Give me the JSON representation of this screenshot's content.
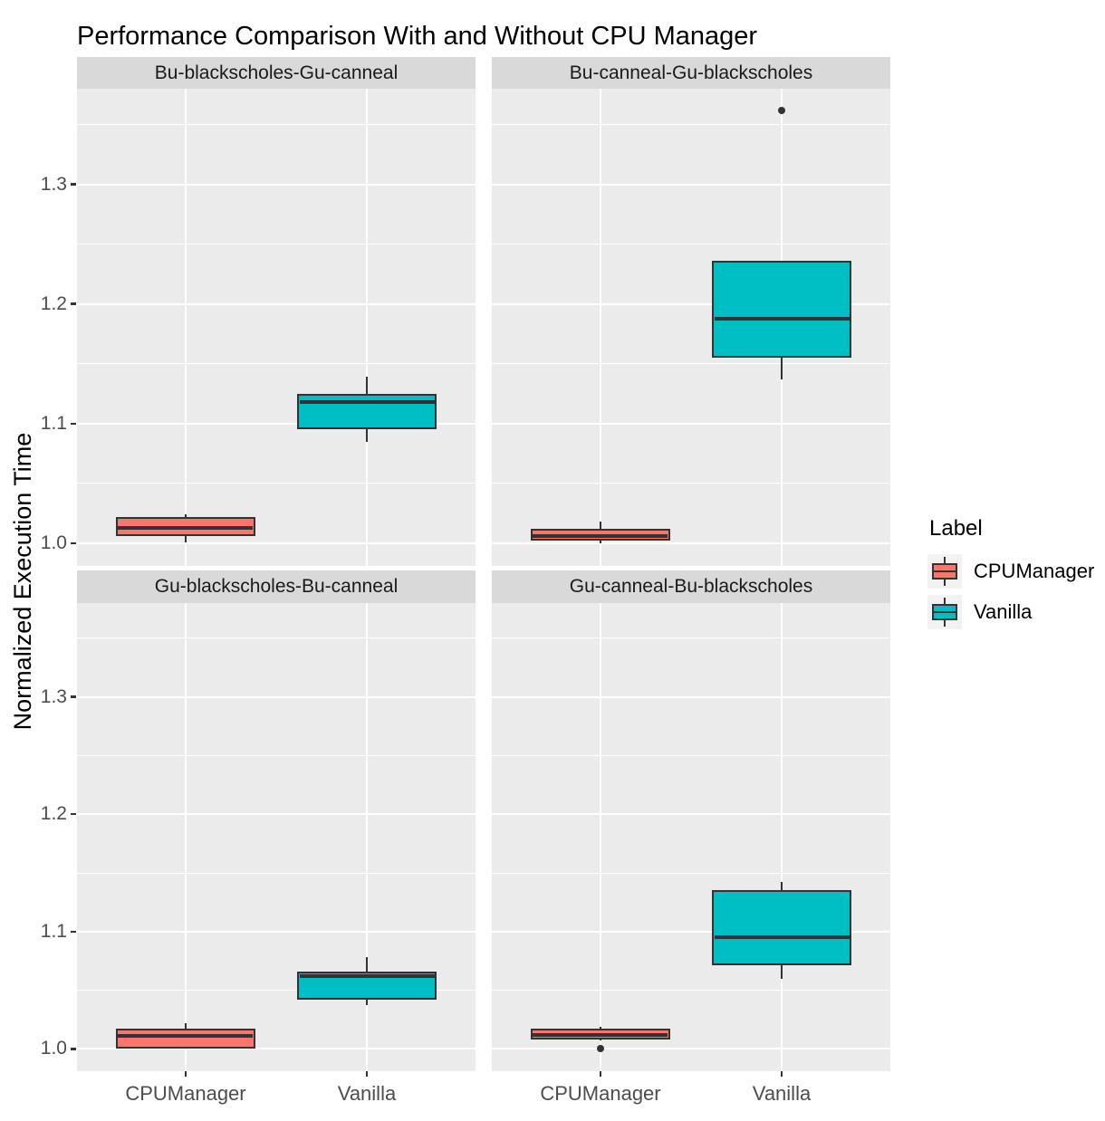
{
  "title": "Performance Comparison With and Without CPU Manager",
  "chart_data": {
    "type": "boxplot",
    "title": "Performance Comparison With and Without CPU Manager",
    "ylabel": "Normalized Execution Time",
    "xlabel": "",
    "categories": [
      "CPUManager",
      "Vanilla"
    ],
    "yticks": [
      1.0,
      1.1,
      1.2,
      1.3
    ],
    "ytick_labels": [
      "1.0",
      "1.1",
      "1.2",
      "1.3"
    ],
    "yticks_minor": [
      1.05,
      1.15,
      1.25,
      1.35
    ],
    "ylim": [
      0.981,
      1.38
    ],
    "grid": true,
    "legend": {
      "title": "Label",
      "position": "right",
      "entries": [
        {
          "label": "CPUManager",
          "color": "#F8766D"
        },
        {
          "label": "Vanilla",
          "color": "#00BFC4"
        }
      ]
    },
    "facets": [
      {
        "label": "Bu-blackscholes-Gu-canneal",
        "boxes": [
          {
            "group": "CPUManager",
            "color": "#F8766D",
            "min": 1.001,
            "q1": 1.006,
            "median": 1.013,
            "q3": 1.022,
            "max": 1.024,
            "outliers": []
          },
          {
            "group": "Vanilla",
            "color": "#00BFC4",
            "min": 1.085,
            "q1": 1.095,
            "median": 1.118,
            "q3": 1.125,
            "max": 1.139,
            "outliers": []
          }
        ]
      },
      {
        "label": "Bu-canneal-Gu-blackscholes",
        "boxes": [
          {
            "group": "CPUManager",
            "color": "#F8766D",
            "min": 1.0,
            "q1": 1.002,
            "median": 1.006,
            "q3": 1.012,
            "max": 1.018,
            "outliers": []
          },
          {
            "group": "Vanilla",
            "color": "#00BFC4",
            "min": 1.137,
            "q1": 1.155,
            "median": 1.188,
            "q3": 1.236,
            "max": 1.236,
            "outliers": [
              1.362
            ]
          }
        ]
      },
      {
        "label": "Gu-blackscholes-Bu-canneal",
        "boxes": [
          {
            "group": "CPUManager",
            "color": "#F8766D",
            "min": 1.0,
            "q1": 1.0,
            "median": 1.011,
            "q3": 1.017,
            "max": 1.022,
            "outliers": []
          },
          {
            "group": "Vanilla",
            "color": "#00BFC4",
            "min": 1.037,
            "q1": 1.042,
            "median": 1.062,
            "q3": 1.066,
            "max": 1.078,
            "outliers": []
          }
        ]
      },
      {
        "label": "Gu-canneal-Bu-blackscholes",
        "boxes": [
          {
            "group": "CPUManager",
            "color": "#F8766D",
            "min": 1.007,
            "q1": 1.008,
            "median": 1.012,
            "q3": 1.017,
            "max": 1.019,
            "outliers": [
              1.0
            ]
          },
          {
            "group": "Vanilla",
            "color": "#00BFC4",
            "min": 1.06,
            "q1": 1.071,
            "median": 1.095,
            "q3": 1.135,
            "max": 1.142,
            "outliers": []
          }
        ]
      }
    ],
    "colors": {
      "panel_bg": "#EBEBEB",
      "strip_bg": "#D9D9D9",
      "grid": "#FFFFFF",
      "box_border": "#333333",
      "outlier": "#333333",
      "axis_text": "#4D4D4D",
      "text": "#1A1A1A",
      "legend_key_bg": "#F2F2F2",
      "background": "#FFFFFF"
    }
  }
}
